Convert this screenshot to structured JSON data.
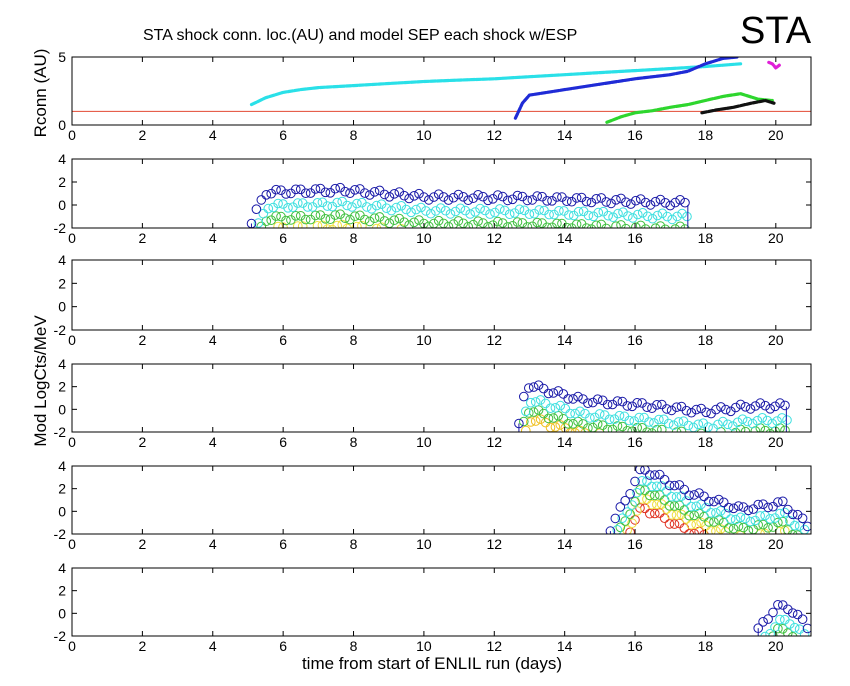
{
  "title": "STA shock conn. loc.(AU) and model SEP each shock w/ESP",
  "title_badge": "STA",
  "xlabel": "time from start of ENLIL run (days)",
  "ylabel_top": "Rconn (AU)",
  "ylabel_shared": "Mod LogCts/MeV",
  "chart_data": [
    {
      "type": "line",
      "ylabel": "Rconn (AU)",
      "xlim": [
        0,
        21
      ],
      "ylim": [
        0,
        5
      ],
      "xticks": [
        0,
        2,
        4,
        6,
        8,
        10,
        12,
        14,
        16,
        18,
        20
      ],
      "yticks": [
        0,
        5
      ],
      "grid": false,
      "reference_line": {
        "y": 1.0,
        "color": "#e24a33"
      },
      "series": [
        {
          "color": "#2ae0e8",
          "x": [
            5.1,
            5.5,
            6.0,
            6.5,
            7.0,
            8.0,
            9.0,
            10.0,
            11.0,
            12.0,
            13.0,
            14.0,
            15.0,
            16.0,
            17.0,
            18.0,
            18.5,
            19.0
          ],
          "y": [
            1.5,
            2.0,
            2.4,
            2.6,
            2.75,
            2.9,
            3.05,
            3.2,
            3.3,
            3.4,
            3.55,
            3.7,
            3.85,
            4.0,
            4.15,
            4.3,
            4.4,
            4.5
          ]
        },
        {
          "color": "#1f2bd6",
          "x": [
            12.6,
            12.8,
            13.0,
            14.0,
            15.0,
            16.0,
            17.0,
            17.5,
            18.0,
            18.5,
            18.9
          ],
          "y": [
            0.5,
            1.6,
            2.2,
            2.6,
            3.0,
            3.4,
            3.7,
            3.95,
            4.5,
            4.9,
            5.0
          ]
        },
        {
          "color": "#2ed62e",
          "x": [
            15.2,
            15.6,
            16.0,
            16.5,
            17.0,
            17.5,
            18.0,
            18.5,
            19.0,
            19.5,
            19.9
          ],
          "y": [
            0.2,
            0.6,
            0.9,
            1.05,
            1.3,
            1.5,
            1.8,
            2.1,
            2.3,
            1.9,
            1.8
          ]
        },
        {
          "color": "#111111",
          "x": [
            17.9,
            18.3,
            18.8,
            19.3,
            19.7,
            19.95
          ],
          "y": [
            0.9,
            1.1,
            1.3,
            1.6,
            1.8,
            1.6
          ]
        },
        {
          "color": "#e020d8",
          "x": [
            19.8,
            19.9,
            20.0,
            20.1
          ],
          "y": [
            4.6,
            4.5,
            4.2,
            4.4
          ]
        }
      ]
    },
    {
      "type": "scatter",
      "ylim": [
        -2,
        4
      ],
      "xlim": [
        0,
        21
      ],
      "yticks": [
        -2,
        0,
        2,
        4
      ],
      "xticks": [
        0,
        2,
        4,
        6,
        8,
        10,
        12,
        14,
        16,
        18,
        20
      ],
      "start": 5.1,
      "peaks": [
        {
          "t": 5.5,
          "v": 1.1
        },
        {
          "t": 7.7,
          "v": 1.3
        },
        {
          "t": 10.0,
          "v": 0.7
        },
        {
          "t": 13.0,
          "v": 0.6
        },
        {
          "t": 16.0,
          "v": 0.3
        },
        {
          "t": 17.0,
          "v": 0.2
        }
      ],
      "end": 17.5,
      "series": [
        {
          "color": "#1a1aa8",
          "offset": 0
        },
        {
          "color": "#3fe0e0",
          "offset": -1.2
        },
        {
          "color": "#40c040",
          "offset": -2.3
        },
        {
          "color": "#f0e040",
          "offset": -3.2
        }
      ]
    },
    {
      "type": "scatter",
      "ylim": [
        -2,
        4
      ],
      "xlim": [
        0,
        21
      ],
      "yticks": [
        -2,
        0,
        2,
        4
      ],
      "xticks": [
        0,
        2,
        4,
        6,
        8,
        10,
        12,
        14,
        16,
        18,
        20
      ],
      "series": []
    },
    {
      "type": "scatter",
      "ylim": [
        -2,
        4
      ],
      "xlim": [
        0,
        21
      ],
      "yticks": [
        -2,
        0,
        2,
        4
      ],
      "xticks": [
        0,
        2,
        4,
        6,
        8,
        10,
        12,
        14,
        16,
        18,
        20
      ],
      "start": 12.7,
      "peaks": [
        {
          "t": 12.9,
          "v": 2.2
        },
        {
          "t": 14.5,
          "v": 0.8
        },
        {
          "t": 16.5,
          "v": 0.3
        },
        {
          "t": 18.0,
          "v": -0.2
        },
        {
          "t": 19.3,
          "v": 0.3
        }
      ],
      "end": 20.3,
      "series": [
        {
          "color": "#1a1aa8",
          "offset": 0
        },
        {
          "color": "#3fe0e0",
          "offset": -1.3
        },
        {
          "color": "#40c040",
          "offset": -2.2
        },
        {
          "color": "#f0c020",
          "offset": -3.0
        }
      ]
    },
    {
      "type": "scatter",
      "ylim": [
        -2,
        4
      ],
      "xlim": [
        0,
        21
      ],
      "yticks": [
        -2,
        0,
        2,
        4
      ],
      "xticks": [
        0,
        2,
        4,
        6,
        8,
        10,
        12,
        14,
        16,
        18,
        20
      ],
      "start": 15.3,
      "peaks": [
        {
          "t": 16.2,
          "v": 3.8
        },
        {
          "t": 17.5,
          "v": 1.7
        },
        {
          "t": 19.0,
          "v": 0.2
        },
        {
          "t": 20.2,
          "v": 0.7
        },
        {
          "t": 20.9,
          "v": -1.2
        }
      ],
      "end": 21.0,
      "series": [
        {
          "color": "#1a1aa8",
          "offset": 0
        },
        {
          "color": "#3fe0e0",
          "offset": -1.0
        },
        {
          "color": "#40c040",
          "offset": -1.8
        },
        {
          "color": "#f0e040",
          "offset": -2.6
        },
        {
          "color": "#e03020",
          "offset": -3.4
        }
      ]
    },
    {
      "type": "scatter",
      "ylim": [
        -2,
        4
      ],
      "xlim": [
        0,
        21
      ],
      "yticks": [
        -2,
        0,
        2,
        4
      ],
      "xticks": [
        0,
        2,
        4,
        6,
        8,
        10,
        12,
        14,
        16,
        18,
        20
      ],
      "start": 19.5,
      "peaks": [
        {
          "t": 20.0,
          "v": 0.6
        },
        {
          "t": 20.4,
          "v": 0.5
        },
        {
          "t": 20.9,
          "v": -1.2
        }
      ],
      "end": 21.0,
      "series": [
        {
          "color": "#1a1aa8",
          "offset": 0
        },
        {
          "color": "#3fe0e0",
          "offset": -1.3
        },
        {
          "color": "#40c040",
          "offset": -2.1
        }
      ]
    }
  ]
}
